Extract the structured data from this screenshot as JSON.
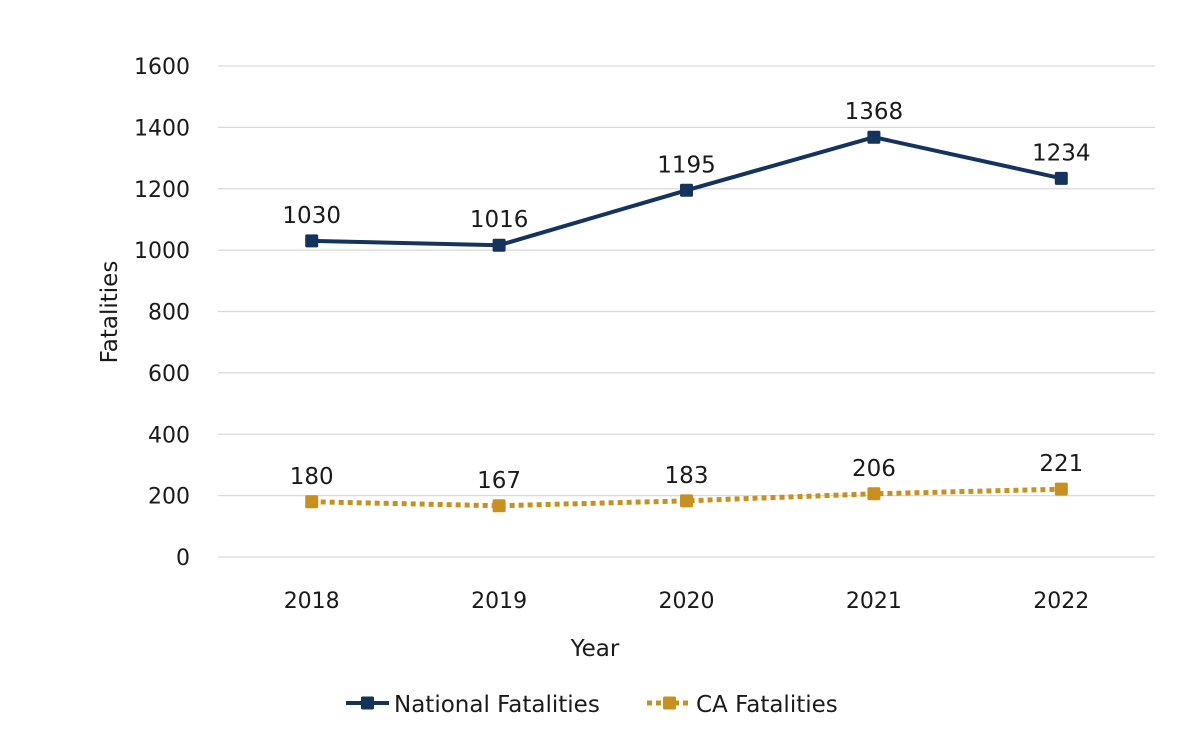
{
  "chart_data": {
    "type": "line",
    "title": "",
    "xlabel": "Year",
    "ylabel": "Fatalities",
    "categories": [
      "2018",
      "2019",
      "2020",
      "2021",
      "2022"
    ],
    "ylim": [
      0,
      1600
    ],
    "yticks": [
      0,
      200,
      400,
      600,
      800,
      1000,
      1200,
      1400,
      1600
    ],
    "grid": true,
    "legend_position": "bottom",
    "series": [
      {
        "name": "National Fatalities",
        "values": [
          1030,
          1016,
          1195,
          1368,
          1234
        ],
        "color": "#14345E",
        "line_style": "solid",
        "marker": "square"
      },
      {
        "name": "CA Fatalities",
        "values": [
          180,
          167,
          183,
          206,
          221
        ],
        "color": "#C8911F",
        "line_style": "dotted",
        "marker": "square"
      }
    ]
  }
}
